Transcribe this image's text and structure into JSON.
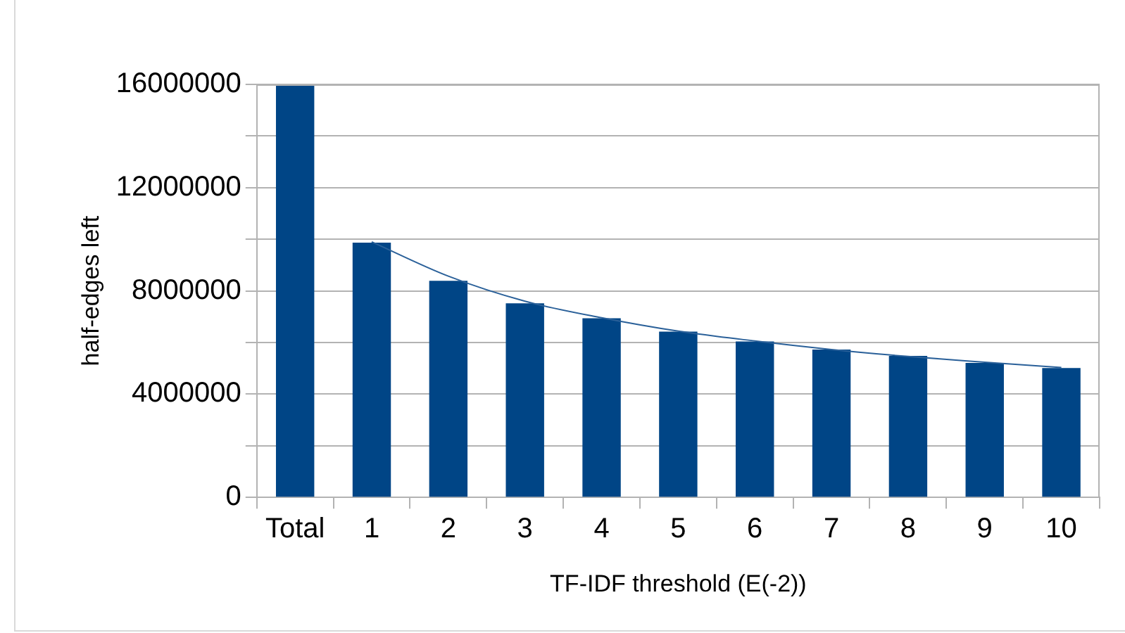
{
  "chart_data": {
    "type": "bar",
    "xlabel": "TF-IDF threshold (E(-2))",
    "ylabel": "half-edges left",
    "categories": [
      "Total",
      "1",
      "2",
      "3",
      "4",
      "5",
      "6",
      "7",
      "8",
      "9",
      "10"
    ],
    "series": [
      {
        "color": "#004586",
        "values": [
          16000000,
          9870000,
          8390000,
          7520000,
          6940000,
          6420000,
          6040000,
          5730000,
          5480000,
          5210000,
          5010000
        ]
      },
      {
        "type": "line",
        "color": "#2a6099",
        "values": [
          null,
          9900000,
          8570000,
          7600000,
          6960000,
          6440000,
          6060000,
          5730000,
          5460000,
          5240000,
          5030000
        ]
      }
    ],
    "ylim": [
      0,
      16000000
    ],
    "yticks": [
      0,
      {
        "value": 2000000,
        "label": null
      },
      4000000,
      {
        "value": 6000000,
        "label": null
      },
      8000000,
      {
        "value": 10000000,
        "label": null
      },
      12000000,
      {
        "value": 14000000,
        "label": null
      },
      16000000
    ],
    "grid": "y",
    "legend": false,
    "marker": "none",
    "line_style": "solid"
  }
}
